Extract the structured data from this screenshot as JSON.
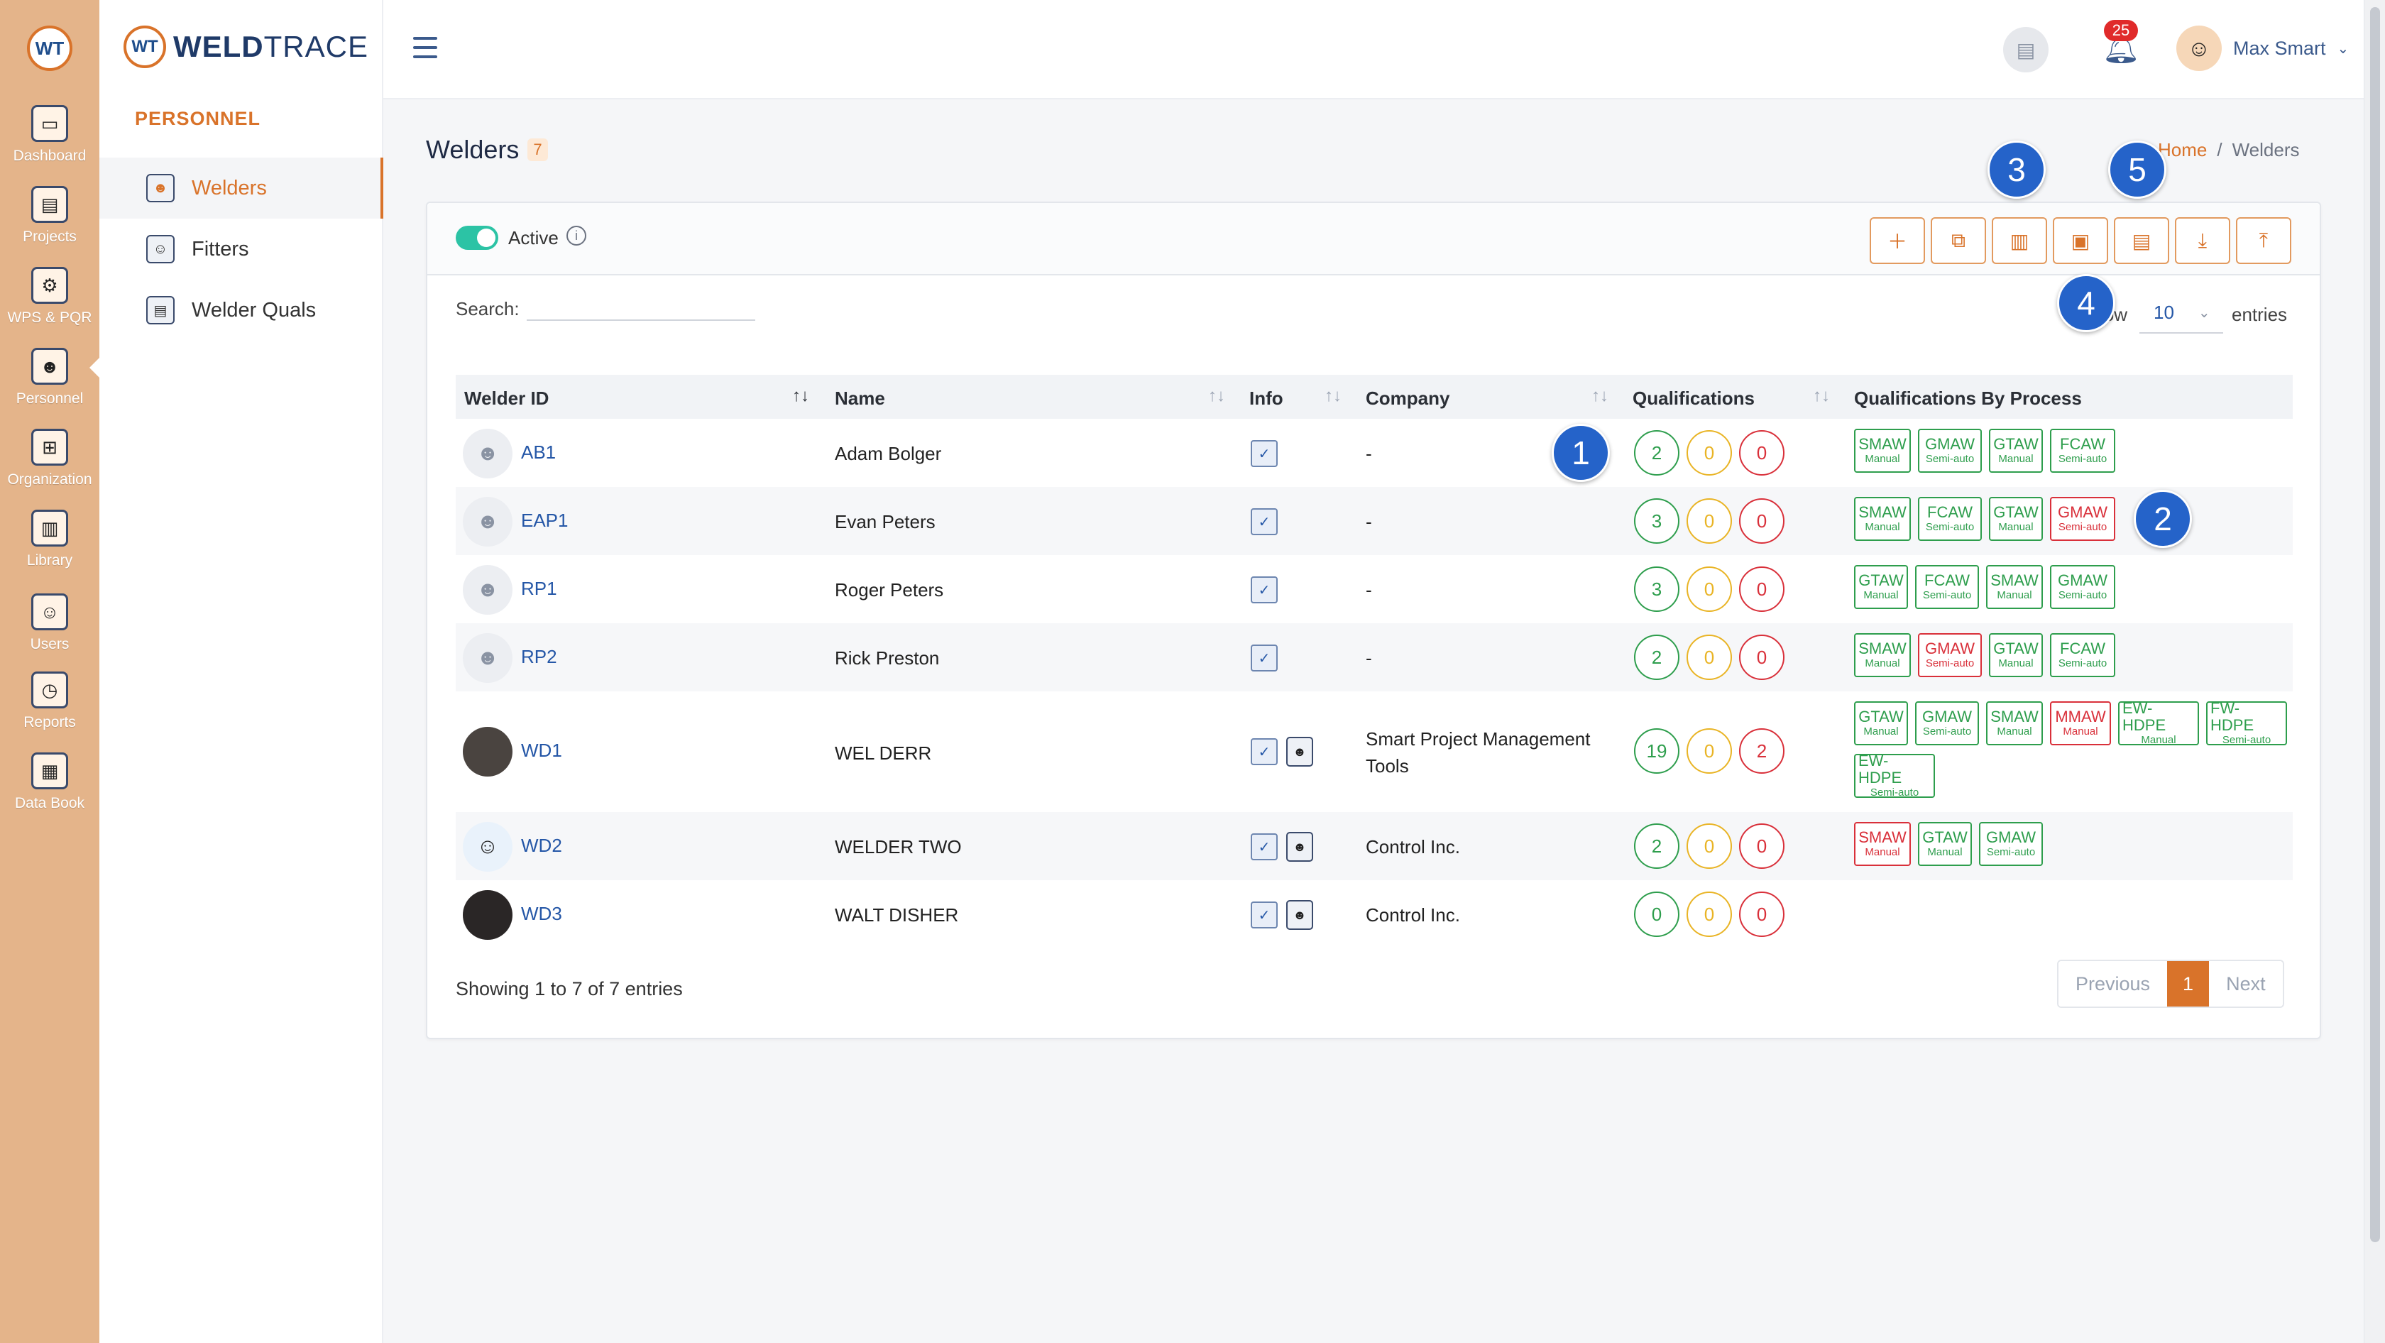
{
  "rail": {
    "logo": "WT",
    "items": [
      {
        "label": "Dashboard"
      },
      {
        "label": "Projects"
      },
      {
        "label": "WPS & PQR"
      },
      {
        "label": "Personnel"
      },
      {
        "label": "Organization"
      },
      {
        "label": "Library"
      },
      {
        "label": "Users"
      },
      {
        "label": "Reports"
      },
      {
        "label": "Data Book"
      }
    ]
  },
  "sidebar": {
    "brand_mark": "WT",
    "brand_weld": "WELD",
    "brand_trace": "TRACE",
    "section": "PERSONNEL",
    "items": [
      {
        "label": "Welders"
      },
      {
        "label": "Fitters"
      },
      {
        "label": "Welder Quals"
      }
    ]
  },
  "topbar": {
    "notification_count": "25",
    "user_name": "Max Smart"
  },
  "page": {
    "title": "Welders",
    "count": "7",
    "breadcrumb_home": "Home",
    "breadcrumb_sep": "/",
    "breadcrumb_current": "Welders"
  },
  "markers": [
    "1",
    "2",
    "3",
    "4",
    "5"
  ],
  "toolbar": {
    "active_label": "Active",
    "info": "i"
  },
  "table_controls": {
    "search_label": "Search:",
    "search_value": "",
    "show_label": "Show",
    "show_value": "10",
    "entries_label": "entries"
  },
  "columns": [
    "Welder ID",
    "Name",
    "Info",
    "Company",
    "Qualifications",
    "Qualifications By Process"
  ],
  "rows": [
    {
      "id": "AB1",
      "name": "Adam Bolger",
      "company": "-",
      "q": [
        "2",
        "0",
        "0"
      ],
      "procs": [
        {
          "n": "SMAW",
          "t": "Manual"
        },
        {
          "n": "GMAW",
          "t": "Semi-auto"
        },
        {
          "n": "GTAW",
          "t": "Manual"
        },
        {
          "n": "FCAW",
          "t": "Semi-auto"
        }
      ]
    },
    {
      "id": "EAP1",
      "name": "Evan Peters",
      "company": "-",
      "q": [
        "3",
        "0",
        "0"
      ],
      "procs": [
        {
          "n": "SMAW",
          "t": "Manual"
        },
        {
          "n": "FCAW",
          "t": "Semi-auto"
        },
        {
          "n": "GTAW",
          "t": "Manual"
        },
        {
          "n": "GMAW",
          "t": "Semi-auto"
        }
      ]
    },
    {
      "id": "RP1",
      "name": "Roger Peters",
      "company": "-",
      "q": [
        "3",
        "0",
        "0"
      ],
      "procs": [
        {
          "n": "GTAW",
          "t": "Manual"
        },
        {
          "n": "FCAW",
          "t": "Semi-auto"
        },
        {
          "n": "SMAW",
          "t": "Manual"
        },
        {
          "n": "GMAW",
          "t": "Semi-auto"
        }
      ]
    },
    {
      "id": "RP2",
      "name": "Rick Preston",
      "company": "-",
      "q": [
        "2",
        "0",
        "0"
      ],
      "procs": [
        {
          "n": "SMAW",
          "t": "Manual"
        },
        {
          "n": "GMAW",
          "t": "Semi-auto"
        },
        {
          "n": "GTAW",
          "t": "Manual"
        },
        {
          "n": "FCAW",
          "t": "Semi-auto"
        }
      ]
    },
    {
      "id": "WD1",
      "name": "WEL DERR",
      "company_line1": "Smart Project Management",
      "company_line2": "Tools",
      "q": [
        "19",
        "0",
        "2"
      ],
      "procs": [
        {
          "n": "GTAW",
          "t": "Manual"
        },
        {
          "n": "GMAW",
          "t": "Semi-auto"
        },
        {
          "n": "SMAW",
          "t": "Manual"
        },
        {
          "n": "MMAW",
          "t": "Manual"
        },
        {
          "n": "EW-HDPE",
          "t": "Manual"
        },
        {
          "n": "FW-HDPE",
          "t": "Semi-auto"
        },
        {
          "n": "EW-HDPE",
          "t": "Semi-auto"
        }
      ]
    },
    {
      "id": "WD2",
      "name": "WELDER TWO",
      "company": "Control Inc.",
      "q": [
        "2",
        "0",
        "0"
      ],
      "procs": [
        {
          "n": "SMAW",
          "t": "Manual"
        },
        {
          "n": "GTAW",
          "t": "Manual"
        },
        {
          "n": "GMAW",
          "t": "Semi-auto"
        }
      ]
    },
    {
      "id": "WD3",
      "name": "WALT DISHER",
      "company": "Control Inc.",
      "q": [
        "0",
        "0",
        "0"
      ],
      "procs": []
    }
  ],
  "footer": {
    "showing": "Showing 1 to 7 of 7 entries",
    "previous": "Previous",
    "page": "1",
    "next": "Next"
  }
}
